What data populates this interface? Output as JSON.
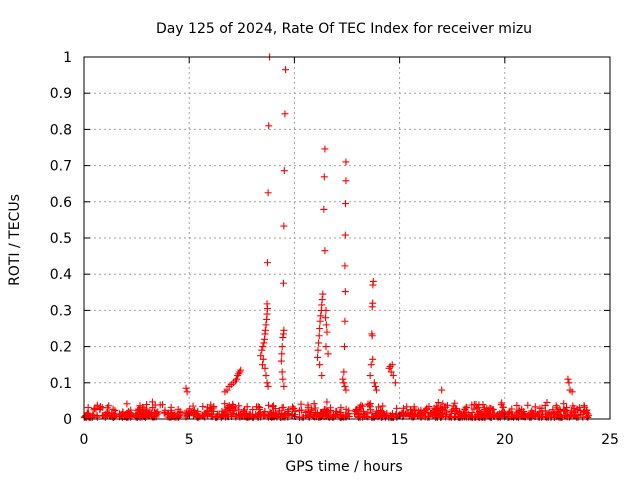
{
  "chart_data": {
    "type": "scatter",
    "title": "Day 125 of 2024, Rate Of TEC Index for receiver mizu",
    "xlabel": "GPS time / hours",
    "ylabel": "ROTI / TECUs",
    "xlim": [
      0,
      25
    ],
    "ylim": [
      0,
      1
    ],
    "xticks": [
      0,
      5,
      10,
      15,
      20,
      25
    ],
    "yticks": [
      0,
      0.1,
      0.2,
      0.3,
      0.4,
      0.5,
      0.6,
      0.7,
      0.8,
      0.9,
      1
    ],
    "xtick_labels": [
      "0",
      "5",
      "10",
      "15",
      "20",
      "25"
    ],
    "ytick_labels": [
      "0",
      "0.1",
      "0.2",
      "0.3",
      "0.4",
      "0.5",
      "0.6",
      "0.7",
      "0.8",
      "0.9",
      "1"
    ],
    "grid": true,
    "marker": "+",
    "color": "#ff0000",
    "series": [
      {
        "name": "ROTI",
        "x": [
          8.82,
          8.78,
          8.75,
          8.72,
          8.7,
          8.72,
          8.7,
          8.68,
          8.65,
          8.62,
          8.6,
          8.58,
          8.55,
          8.5,
          8.45,
          8.4,
          8.52,
          8.48,
          8.6,
          8.65,
          8.7,
          8.75,
          9.58,
          9.55,
          9.52,
          9.5,
          9.48,
          9.5,
          9.48,
          9.45,
          9.42,
          9.4,
          9.38,
          9.42,
          9.45,
          9.5,
          11.35,
          11.32,
          11.3,
          11.28,
          11.25,
          11.22,
          11.2,
          11.18,
          11.15,
          11.12,
          11.1,
          11.2,
          11.3,
          11.45,
          11.42,
          11.4,
          11.45,
          11.5,
          11.48,
          11.52,
          11.55,
          11.5,
          11.6,
          12.45,
          12.45,
          12.43,
          12.42,
          12.4,
          12.42,
          12.4,
          12.38,
          12.35,
          12.3,
          12.35,
          12.4,
          12.45,
          13.75,
          13.73,
          13.72,
          13.7,
          13.68,
          13.7,
          13.72,
          13.65,
          13.6,
          13.8,
          13.85,
          13.9,
          7.45,
          7.4,
          7.35,
          7.3,
          7.25,
          7.2,
          7.1,
          7.0,
          6.9,
          6.8,
          6.7,
          14.5,
          14.55,
          14.6,
          14.65,
          14.7,
          14.8,
          4.85,
          4.9,
          17.0,
          23.0,
          23.05,
          23.1,
          23.2
        ],
        "y": [
          1.0,
          0.81,
          0.625,
          0.432,
          0.318,
          0.305,
          0.29,
          0.275,
          0.26,
          0.245,
          0.235,
          0.22,
          0.21,
          0.2,
          0.19,
          0.175,
          0.165,
          0.15,
          0.14,
          0.12,
          0.1,
          0.09,
          0.965,
          0.843,
          0.686,
          0.533,
          0.375,
          0.245,
          0.235,
          0.225,
          0.2,
          0.18,
          0.16,
          0.13,
          0.11,
          0.09,
          0.345,
          0.33,
          0.315,
          0.3,
          0.285,
          0.27,
          0.25,
          0.23,
          0.21,
          0.19,
          0.17,
          0.15,
          0.12,
          0.746,
          0.669,
          0.579,
          0.465,
          0.3,
          0.28,
          0.26,
          0.24,
          0.2,
          0.18,
          0.71,
          0.658,
          0.595,
          0.508,
          0.423,
          0.352,
          0.27,
          0.2,
          0.13,
          0.11,
          0.1,
          0.09,
          0.08,
          0.38,
          0.37,
          0.32,
          0.31,
          0.235,
          0.23,
          0.165,
          0.15,
          0.12,
          0.1,
          0.09,
          0.08,
          0.135,
          0.13,
          0.125,
          0.12,
          0.11,
          0.105,
          0.1,
          0.095,
          0.09,
          0.08,
          0.075,
          0.14,
          0.145,
          0.13,
          0.15,
          0.12,
          0.1,
          0.085,
          0.075,
          0.08,
          0.11,
          0.1,
          0.08,
          0.075
        ]
      }
    ]
  }
}
